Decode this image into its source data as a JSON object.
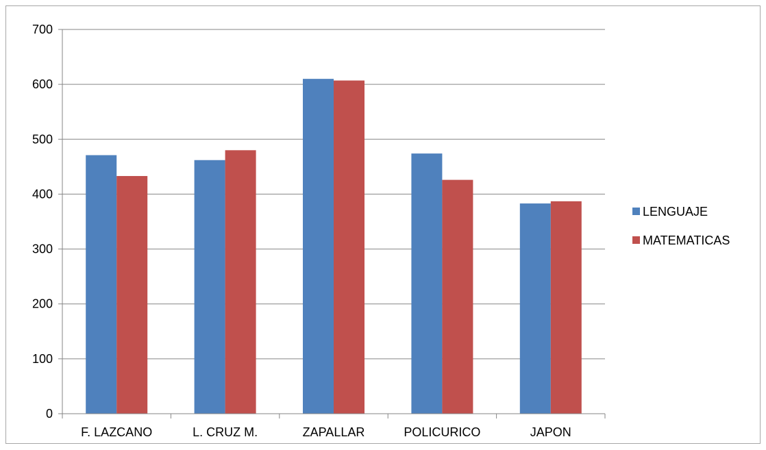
{
  "chart_data": {
    "type": "bar",
    "title": "",
    "xlabel": "",
    "ylabel": "",
    "categories": [
      "F. LAZCANO",
      "L. CRUZ M.",
      "ZAPALLAR",
      "POLICURICO",
      "JAPON"
    ],
    "series": [
      {
        "name": "LENGUAJE",
        "color": "#4f81bd",
        "values": [
          471,
          462,
          610,
          474,
          383
        ]
      },
      {
        "name": "MATEMATICAS",
        "color": "#c0504d",
        "values": [
          433,
          480,
          607,
          426,
          387
        ]
      }
    ],
    "ylim": [
      0,
      700
    ],
    "yticks": [
      0,
      100,
      200,
      300,
      400,
      500,
      600,
      700
    ],
    "grid": true,
    "legend": "right"
  }
}
